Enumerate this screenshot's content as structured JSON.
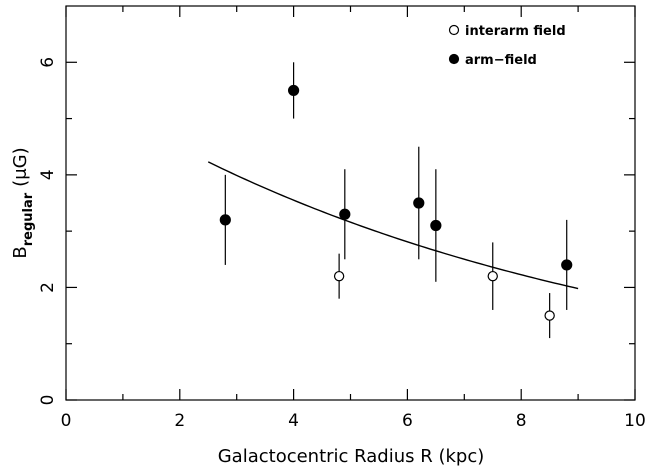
{
  "chart_data": {
    "type": "scatter",
    "xlabel": "Galactocentric Radius R (kpc)",
    "ylabel": {
      "main": "B",
      "subscript": "regular",
      "unit": "(μG)"
    },
    "xlim": [
      0,
      10
    ],
    "ylim": [
      0,
      7
    ],
    "x_major_ticks": [
      0,
      2,
      4,
      6,
      8,
      10
    ],
    "x_minor_ticks": [
      1,
      3,
      5,
      7,
      9
    ],
    "y_major_ticks": [
      0,
      2,
      4,
      6
    ],
    "y_minor_ticks": [
      1,
      3,
      5
    ],
    "grid": false,
    "legend_position": "top-right",
    "series": [
      {
        "name": "interarm field",
        "marker": "open-circle",
        "points": [
          {
            "x": 4.8,
            "y": 2.2,
            "err_low": 1.8,
            "err_high": 2.6
          },
          {
            "x": 7.5,
            "y": 2.2,
            "err_low": 1.6,
            "err_high": 2.8
          },
          {
            "x": 8.5,
            "y": 1.5,
            "err_low": 1.1,
            "err_high": 1.9
          }
        ]
      },
      {
        "name": "arm−field",
        "marker": "filled-circle",
        "points": [
          {
            "x": 2.8,
            "y": 3.2,
            "err_low": 2.4,
            "err_high": 4.0
          },
          {
            "x": 4.0,
            "y": 5.5,
            "err_low": 5.0,
            "err_high": 6.0
          },
          {
            "x": 4.9,
            "y": 3.3,
            "err_low": 2.5,
            "err_high": 4.1
          },
          {
            "x": 6.2,
            "y": 3.5,
            "err_low": 2.5,
            "err_high": 4.5
          },
          {
            "x": 6.5,
            "y": 3.1,
            "err_low": 2.1,
            "err_high": 4.1
          },
          {
            "x": 8.8,
            "y": 2.4,
            "err_low": 1.6,
            "err_high": 3.2
          }
        ]
      }
    ],
    "fit_curve": {
      "type": "exponential",
      "x_range": [
        2.5,
        9.0
      ],
      "points": [
        [
          2.5,
          4.23
        ],
        [
          9.0,
          1.98
        ]
      ]
    }
  }
}
